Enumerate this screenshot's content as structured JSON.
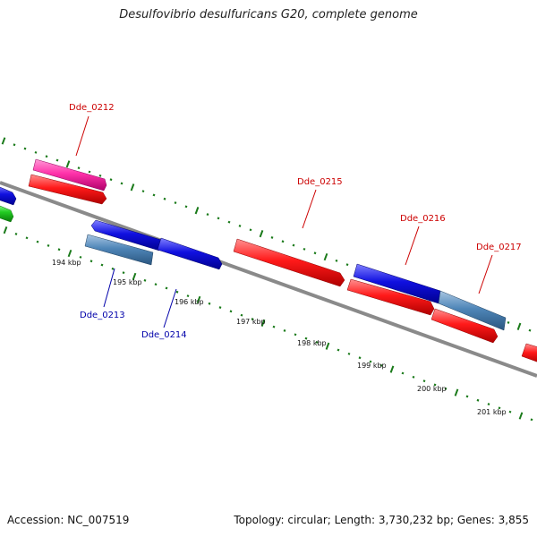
{
  "title": "Desulfovibrio desulfuricans G20, complete genome",
  "footer": {
    "accession": "Accession: NC_007519",
    "summary": "Topology: circular; Length: 3,730,232 bp; Genes: 3,855"
  },
  "colors": {
    "backbone": "#8a8a8a",
    "ticks": "#1a7a1a",
    "plus_strand_label": "#cc0000",
    "minus_strand_label": "#0000aa",
    "red": "#ff1a1a",
    "blue": "#1010e0",
    "steelblue": "#4f86b8",
    "pink": "#ff33aa",
    "green": "#22cc22"
  },
  "axis": {
    "kbp_ticks": [
      {
        "kbp": 194,
        "label": "194 kbp"
      },
      {
        "kbp": 195,
        "label": "195 kbp"
      },
      {
        "kbp": 196,
        "label": "196 kbp"
      },
      {
        "kbp": 197,
        "label": "197 kbp"
      },
      {
        "kbp": 198,
        "label": "198 kbp"
      },
      {
        "kbp": 199,
        "label": "199 kbp"
      },
      {
        "kbp": 200,
        "label": "200 kbp"
      },
      {
        "kbp": 201,
        "label": "201 kbp"
      }
    ]
  },
  "gene_labels": [
    {
      "id": "Dde_0212",
      "strand": "plus"
    },
    {
      "id": "Dde_0213",
      "strand": "minus"
    },
    {
      "id": "Dde_0214",
      "strand": "minus"
    },
    {
      "id": "Dde_0215",
      "strand": "plus"
    },
    {
      "id": "Dde_0216",
      "strand": "plus"
    },
    {
      "id": "Dde_0217",
      "strand": "plus"
    }
  ]
}
